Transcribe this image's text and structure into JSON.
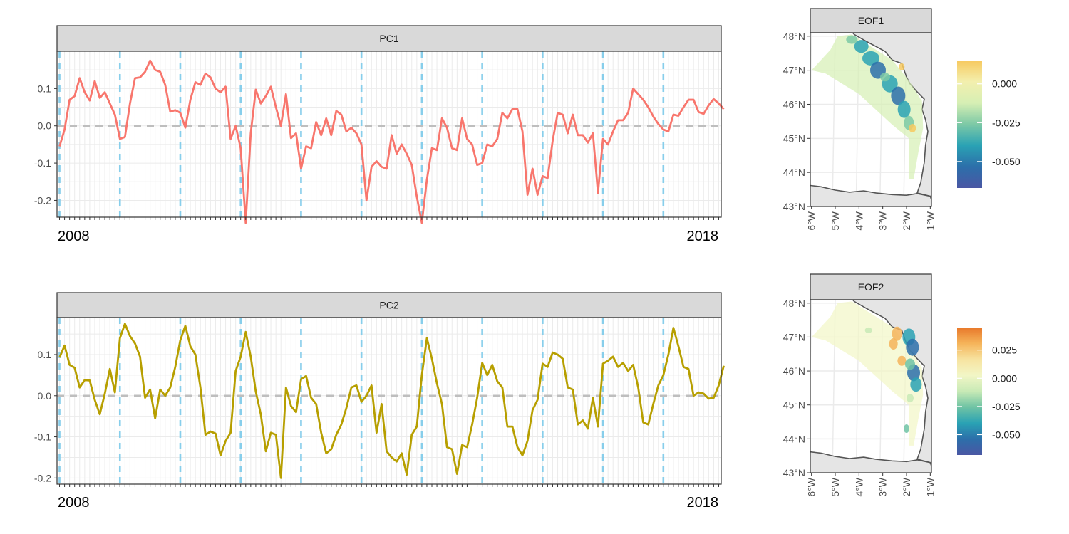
{
  "chart_data": [
    {
      "type": "line",
      "panel_title": "PC1",
      "x_label_start": "2008",
      "x_label_end": "2018",
      "ylim": [
        -0.245,
        0.2
      ],
      "yticks": [
        -0.2,
        -0.1,
        0.0,
        0.1
      ],
      "ytick_labels": [
        "-0.2",
        "-0.1",
        "0.0",
        "0.1"
      ],
      "n_months": 132,
      "year_dashes_at_month": [
        0,
        12,
        24,
        36,
        48,
        60,
        72,
        84,
        96,
        108,
        120
      ],
      "zero_line": true,
      "series": [
        {
          "color": "#F8766D",
          "values": [
            -0.055,
            -0.01,
            0.07,
            0.08,
            0.128,
            0.09,
            0.068,
            0.12,
            0.075,
            0.09,
            0.06,
            0.03,
            -0.035,
            -0.03,
            0.06,
            0.128,
            0.13,
            0.145,
            0.175,
            0.15,
            0.145,
            0.11,
            0.038,
            0.042,
            0.035,
            -0.005,
            0.07,
            0.117,
            0.11,
            0.14,
            0.13,
            0.1,
            0.09,
            0.105,
            -0.035,
            0.0,
            -0.06,
            -0.26,
            -0.02,
            0.097,
            0.06,
            0.08,
            0.105,
            0.05,
            0.0,
            0.085,
            -0.033,
            -0.02,
            -0.115,
            -0.055,
            -0.06,
            0.01,
            -0.025,
            0.02,
            -0.025,
            0.04,
            0.03,
            -0.015,
            -0.005,
            -0.02,
            -0.05,
            -0.2,
            -0.11,
            -0.095,
            -0.11,
            -0.115,
            -0.025,
            -0.075,
            -0.05,
            -0.075,
            -0.105,
            -0.19,
            -0.26,
            -0.145,
            -0.06,
            -0.065,
            0.02,
            -0.005,
            -0.06,
            -0.065,
            0.02,
            -0.035,
            -0.05,
            -0.105,
            -0.1,
            -0.05,
            -0.055,
            -0.035,
            0.035,
            0.02,
            0.045,
            0.045,
            -0.015,
            -0.185,
            -0.115,
            -0.185,
            -0.135,
            -0.14,
            -0.04,
            0.035,
            0.03,
            -0.02,
            0.03,
            -0.025,
            -0.025,
            -0.045,
            -0.02,
            -0.18,
            -0.035,
            -0.05,
            -0.015,
            0.015,
            0.015,
            0.035,
            0.1,
            0.085,
            0.07,
            0.05,
            0.025,
            0.005,
            -0.01,
            -0.015,
            0.03,
            0.027,
            0.05,
            0.07,
            0.07,
            0.037,
            0.032,
            0.055,
            0.072,
            0.06,
            0.045
          ]
        }
      ]
    },
    {
      "type": "line",
      "panel_title": "PC2",
      "x_label_start": "2008",
      "x_label_end": "2018",
      "ylim": [
        -0.215,
        0.19
      ],
      "yticks": [
        -0.2,
        -0.1,
        0.0,
        0.1
      ],
      "ytick_labels": [
        "-0.2",
        "-0.1",
        "0.0",
        "0.1"
      ],
      "n_months": 132,
      "year_dashes_at_month": [
        0,
        12,
        24,
        36,
        48,
        60,
        72,
        84,
        96,
        108,
        120
      ],
      "zero_line": true,
      "series": [
        {
          "color": "#B79F00",
          "values": [
            0.093,
            0.122,
            0.075,
            0.068,
            0.02,
            0.038,
            0.037,
            -0.01,
            -0.045,
            0.005,
            0.065,
            0.008,
            0.14,
            0.175,
            0.145,
            0.127,
            0.095,
            -0.005,
            0.015,
            -0.055,
            0.015,
            0.0,
            0.02,
            0.07,
            0.135,
            0.17,
            0.12,
            0.1,
            0.02,
            -0.095,
            -0.087,
            -0.092,
            -0.145,
            -0.11,
            -0.09,
            0.06,
            0.095,
            0.155,
            0.095,
            0.01,
            -0.045,
            -0.135,
            -0.09,
            -0.095,
            -0.2,
            0.02,
            -0.025,
            -0.04,
            0.04,
            0.048,
            -0.005,
            -0.02,
            -0.09,
            -0.14,
            -0.13,
            -0.095,
            -0.07,
            -0.03,
            0.02,
            0.025,
            -0.015,
            0.0,
            0.025,
            -0.09,
            -0.02,
            -0.135,
            -0.15,
            -0.16,
            -0.14,
            -0.192,
            -0.095,
            -0.075,
            0.05,
            0.14,
            0.09,
            0.03,
            -0.02,
            -0.125,
            -0.13,
            -0.19,
            -0.12,
            -0.125,
            -0.07,
            -0.005,
            0.08,
            0.05,
            0.075,
            0.035,
            0.02,
            -0.075,
            -0.075,
            -0.125,
            -0.145,
            -0.11,
            -0.035,
            -0.01,
            0.078,
            0.07,
            0.105,
            0.1,
            0.09,
            0.02,
            0.015,
            -0.07,
            -0.06,
            -0.08,
            -0.005,
            -0.075,
            0.078,
            0.085,
            0.095,
            0.07,
            0.08,
            0.06,
            0.075,
            0.02,
            -0.065,
            -0.07,
            -0.02,
            0.025,
            0.05,
            0.1,
            0.165,
            0.12,
            0.07,
            0.065,
            0.0,
            0.008,
            0.005,
            -0.007,
            -0.005,
            0.025,
            0.073
          ]
        }
      ]
    }
  ],
  "maps": [
    {
      "panel_title": "EOF1",
      "lat_labels": [
        "48°N",
        "47°N",
        "46°N",
        "45°N",
        "44°N",
        "43°N"
      ],
      "lon_labels": [
        "6°W",
        "5°W",
        "4°W",
        "3°W",
        "2°W",
        "1°W"
      ],
      "legend_labels": [
        "0.000",
        "-0.025",
        "-0.050"
      ],
      "legend_colors": [
        "#F7C95F",
        "#F3EFAE",
        "#D6EFB4",
        "#7DC9A6",
        "#2AA2B4",
        "#2C6FAA",
        "#4A57A4"
      ]
    },
    {
      "panel_title": "EOF2",
      "lat_labels": [
        "48°N",
        "47°N",
        "46°N",
        "45°N",
        "44°N",
        "43°N"
      ],
      "lon_labels": [
        "6°W",
        "5°W",
        "4°W",
        "3°W",
        "2°W",
        "1°W"
      ],
      "legend_labels": [
        "0.025",
        "0.000",
        "-0.025",
        "-0.050"
      ],
      "legend_colors": [
        "#E8782A",
        "#F5B45A",
        "#F7E3A0",
        "#F2F6C6",
        "#C8EAB6",
        "#6FC3A4",
        "#2AA2B4",
        "#2C6FAA",
        "#4A57A4"
      ]
    }
  ],
  "colors": {
    "year_dash": "#87CEEB",
    "zero_line": "#BEBEBE",
    "grid": "#EBEBEB",
    "strip_fill": "#D9D9D9",
    "land": "#E5E5E5",
    "coast": "#555555"
  }
}
